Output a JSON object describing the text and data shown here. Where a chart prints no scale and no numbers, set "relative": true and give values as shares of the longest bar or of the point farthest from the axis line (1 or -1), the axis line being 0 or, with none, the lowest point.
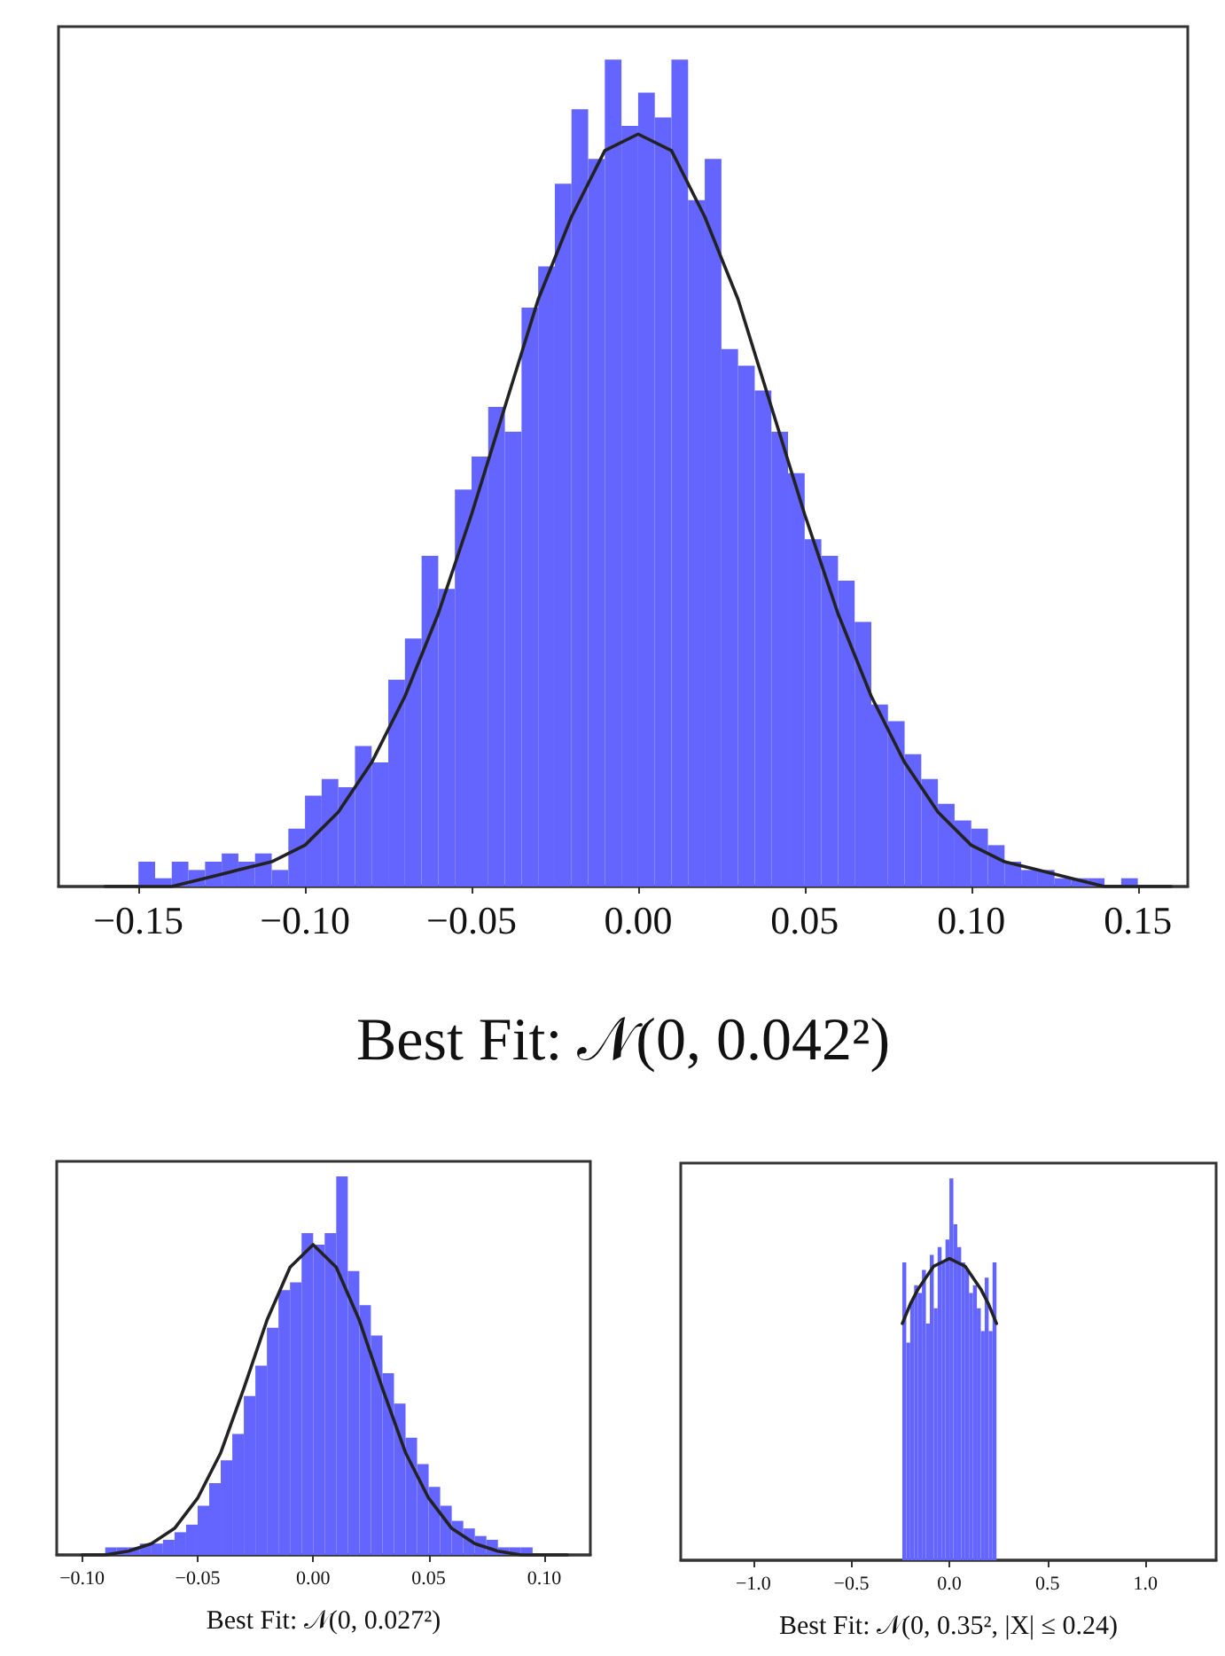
{
  "chart_data": [
    {
      "type": "histogram",
      "relative": true,
      "xlabel": "Best Fit: 𝒩(0, 0.042²)",
      "xlim": [
        -0.174,
        0.165
      ],
      "xticks": [
        {
          "value": -0.15,
          "label": "−0.15"
        },
        {
          "value": -0.1,
          "label": "−0.10"
        },
        {
          "value": -0.05,
          "label": "−0.05"
        },
        {
          "value": 0,
          "label": "0.00"
        },
        {
          "value": 0.05,
          "label": "0.05"
        },
        {
          "value": 0.1,
          "label": "0.10"
        },
        {
          "value": 0.15,
          "label": "0.15"
        }
      ],
      "series": [
        {
          "type": "histogram",
          "color": "#6464ff",
          "bins": [
            -0.16,
            -0.155,
            -0.15,
            -0.145,
            -0.14,
            -0.135,
            -0.13,
            -0.125,
            -0.12,
            -0.115,
            -0.11,
            -0.105,
            -0.1,
            -0.095,
            -0.09,
            -0.085,
            -0.08,
            -0.075,
            -0.07,
            -0.065,
            -0.06,
            -0.055,
            -0.05,
            -0.045,
            -0.04,
            -0.035,
            -0.03,
            -0.025,
            -0.02,
            -0.015,
            -0.01,
            -0.005,
            0,
            0.005,
            0.01,
            0.015,
            0.02,
            0.025,
            0.03,
            0.035,
            0.04,
            0.045,
            0.05,
            0.055,
            0.06,
            0.065,
            0.07,
            0.075,
            0.08,
            0.085,
            0.09,
            0.095,
            0.1,
            0.105,
            0.11,
            0.115,
            0.12,
            0.125,
            0.13,
            0.135,
            0.14,
            0.145,
            0.15,
            0.155,
            0.16
          ],
          "values": [
            0,
            0,
            0.03,
            0.01,
            0.03,
            0.02,
            0.03,
            0.04,
            0.03,
            0.04,
            0.02,
            0.07,
            0.11,
            0.13,
            0.12,
            0.17,
            0.15,
            0.25,
            0.3,
            0.4,
            0.36,
            0.48,
            0.52,
            0.58,
            0.55,
            0.7,
            0.75,
            0.85,
            0.94,
            0.88,
            1,
            0.92,
            0.96,
            0.93,
            1,
            0.83,
            0.88,
            0.65,
            0.63,
            0.6,
            0.55,
            0.5,
            0.42,
            0.4,
            0.37,
            0.32,
            0.22,
            0.2,
            0.16,
            0.13,
            0.1,
            0.08,
            0.07,
            0.05,
            0.03,
            0.02,
            0.02,
            0.01,
            0.01,
            0.01,
            0,
            0.01,
            0,
            0
          ]
        },
        {
          "type": "line",
          "color": "#222222",
          "x": [
            -0.16,
            -0.15,
            -0.14,
            -0.13,
            -0.12,
            -0.11,
            -0.1,
            -0.09,
            -0.08,
            -0.07,
            -0.06,
            -0.05,
            -0.04,
            -0.03,
            -0.02,
            -0.01,
            0,
            0.01,
            0.02,
            0.03,
            0.04,
            0.05,
            0.06,
            0.07,
            0.08,
            0.09,
            0.1,
            0.11,
            0.12,
            0.13,
            0.14,
            0.15,
            0.16
          ],
          "values": [
            0,
            0,
            0,
            0.01,
            0.02,
            0.03,
            0.05,
            0.09,
            0.15,
            0.23,
            0.33,
            0.45,
            0.58,
            0.71,
            0.81,
            0.89,
            0.91,
            0.89,
            0.81,
            0.71,
            0.58,
            0.45,
            0.33,
            0.23,
            0.15,
            0.09,
            0.05,
            0.03,
            0.02,
            0.01,
            0,
            0,
            0
          ]
        }
      ]
    },
    {
      "type": "histogram",
      "relative": true,
      "xlabel": "Best Fit: 𝒩(0, 0.027²)",
      "xlim": [
        -0.111,
        0.12
      ],
      "xticks": [
        {
          "value": -0.1,
          "label": "−0.10"
        },
        {
          "value": -0.05,
          "label": "−0.05"
        },
        {
          "value": 0,
          "label": "0.00"
        },
        {
          "value": 0.05,
          "label": "0.05"
        },
        {
          "value": 0.1,
          "label": "0.10"
        }
      ],
      "series": [
        {
          "type": "histogram",
          "color": "#6464ff",
          "bins": [
            -0.1,
            -0.095,
            -0.09,
            -0.085,
            -0.08,
            -0.075,
            -0.07,
            -0.065,
            -0.06,
            -0.055,
            -0.05,
            -0.045,
            -0.04,
            -0.035,
            -0.03,
            -0.025,
            -0.02,
            -0.015,
            -0.01,
            -0.005,
            0,
            0.005,
            0.01,
            0.015,
            0.02,
            0.025,
            0.03,
            0.035,
            0.04,
            0.045,
            0.05,
            0.055,
            0.06,
            0.065,
            0.07,
            0.075,
            0.08,
            0.085,
            0.09,
            0.095,
            0.1,
            0.105,
            0.11
          ],
          "values": [
            0,
            0,
            0.02,
            0.02,
            0.02,
            0.03,
            0.03,
            0.04,
            0.06,
            0.08,
            0.13,
            0.19,
            0.25,
            0.32,
            0.42,
            0.5,
            0.6,
            0.7,
            0.72,
            0.85,
            0.82,
            0.85,
            1,
            0.75,
            0.66,
            0.58,
            0.48,
            0.4,
            0.31,
            0.24,
            0.18,
            0.13,
            0.09,
            0.07,
            0.05,
            0.04,
            0.02,
            0.02,
            0.02,
            0,
            0,
            0
          ]
        },
        {
          "type": "line",
          "color": "#222222",
          "x": [
            -0.1,
            -0.09,
            -0.08,
            -0.07,
            -0.06,
            -0.05,
            -0.04,
            -0.03,
            -0.02,
            -0.01,
            0,
            0.01,
            0.02,
            0.03,
            0.04,
            0.05,
            0.06,
            0.07,
            0.08,
            0.09,
            0.1,
            0.11
          ],
          "values": [
            0,
            0,
            0.01,
            0.03,
            0.07,
            0.15,
            0.27,
            0.44,
            0.62,
            0.76,
            0.82,
            0.76,
            0.62,
            0.44,
            0.27,
            0.15,
            0.07,
            0.03,
            0.01,
            0,
            0,
            0
          ]
        }
      ]
    },
    {
      "type": "histogram",
      "relative": true,
      "xlabel": "Best Fit: 𝒩(0, 0.35², |X| ≤ 0.24)",
      "xlim": [
        -1.37,
        1.36
      ],
      "xticks": [
        {
          "value": -1,
          "label": "−1.0"
        },
        {
          "value": -0.5,
          "label": "−0.5"
        },
        {
          "value": 0,
          "label": "0.0"
        },
        {
          "value": 0.5,
          "label": "0.5"
        },
        {
          "value": 1,
          "label": "1.0"
        }
      ],
      "series": [
        {
          "type": "histogram",
          "color": "#6464ff",
          "bins": [
            -0.24,
            -0.22,
            -0.2,
            -0.18,
            -0.16,
            -0.14,
            -0.12,
            -0.1,
            -0.08,
            -0.06,
            -0.04,
            -0.02,
            0,
            0.02,
            0.04,
            0.06,
            0.08,
            0.1,
            0.12,
            0.14,
            0.16,
            0.18,
            0.2,
            0.22,
            0.24
          ],
          "values": [
            0.78,
            0.57,
            0.68,
            0.72,
            0.7,
            0.76,
            0.62,
            0.8,
            0.66,
            0.82,
            0.78,
            0.84,
            1,
            0.88,
            0.82,
            0.78,
            0.76,
            0.7,
            0.72,
            0.66,
            0.6,
            0.74,
            0.6,
            0.78
          ]
        },
        {
          "type": "line",
          "color": "#222222",
          "x": [
            -0.24,
            -0.2,
            -0.16,
            -0.12,
            -0.08,
            -0.04,
            0,
            0.04,
            0.08,
            0.12,
            0.16,
            0.2,
            0.24
          ],
          "values": [
            0.62,
            0.67,
            0.71,
            0.74,
            0.77,
            0.78,
            0.79,
            0.78,
            0.77,
            0.74,
            0.71,
            0.67,
            0.62
          ]
        }
      ]
    }
  ]
}
